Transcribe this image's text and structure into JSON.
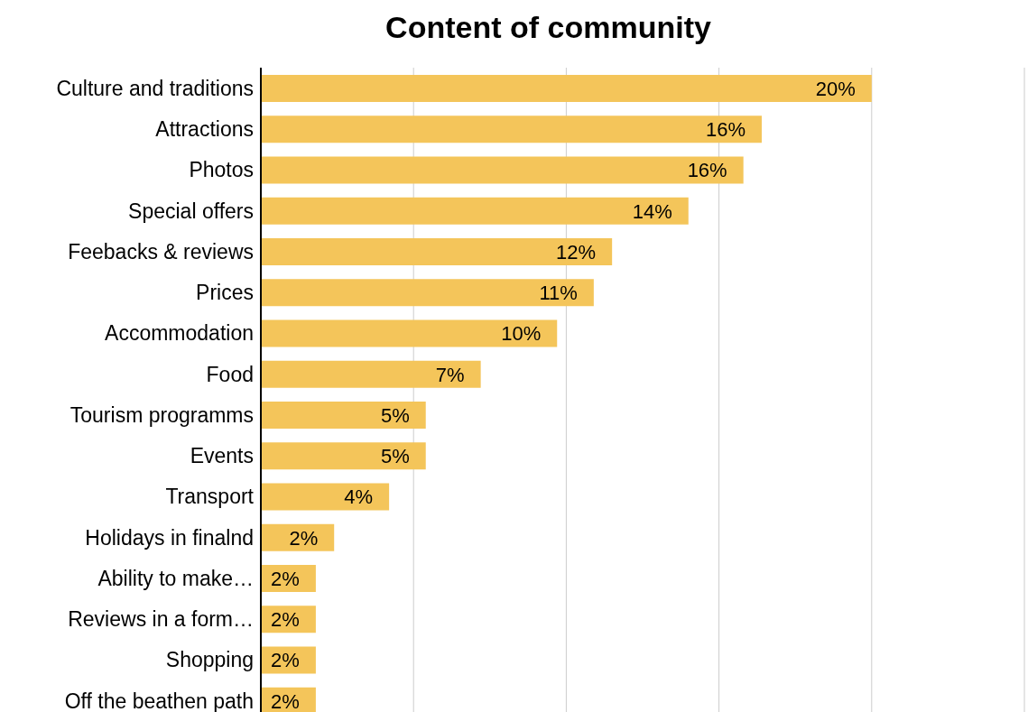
{
  "chart_data": {
    "type": "bar",
    "orientation": "horizontal",
    "title": "Content of community",
    "categories": [
      "Culture and traditions",
      "Attractions",
      "Photos",
      "Special offers",
      "Feebacks & reviews",
      "Prices",
      "Accommodation",
      "Food",
      "Tourism programms",
      "Events",
      "Transport",
      "Holidays in finalnd",
      "Ability to make…",
      "Reviews in a form…",
      "Shopping",
      "Off the beathen path"
    ],
    "values": [
      20,
      16.4,
      15.8,
      14,
      11.5,
      10.9,
      9.7,
      7.2,
      5.4,
      5.4,
      4.2,
      2.4,
      1.8,
      1.8,
      1.8,
      1.8
    ],
    "value_labels": [
      "20%",
      "16%",
      "16%",
      "14%",
      "12%",
      "11%",
      "10%",
      "7%",
      "5%",
      "5%",
      "4%",
      "2%",
      "2%",
      "2%",
      "2%",
      "2%"
    ],
    "color": "#f4c55a",
    "xlim": [
      0,
      25
    ],
    "xticks": [
      {
        "value": 0,
        "label": null
      },
      {
        "value": 5,
        "label": null
      },
      {
        "value": 10,
        "label": null
      },
      {
        "value": 15,
        "label": null
      },
      {
        "value": 20,
        "label": null
      },
      {
        "value": 25,
        "label": null
      }
    ],
    "grid": "x",
    "tick_labels": "y"
  }
}
